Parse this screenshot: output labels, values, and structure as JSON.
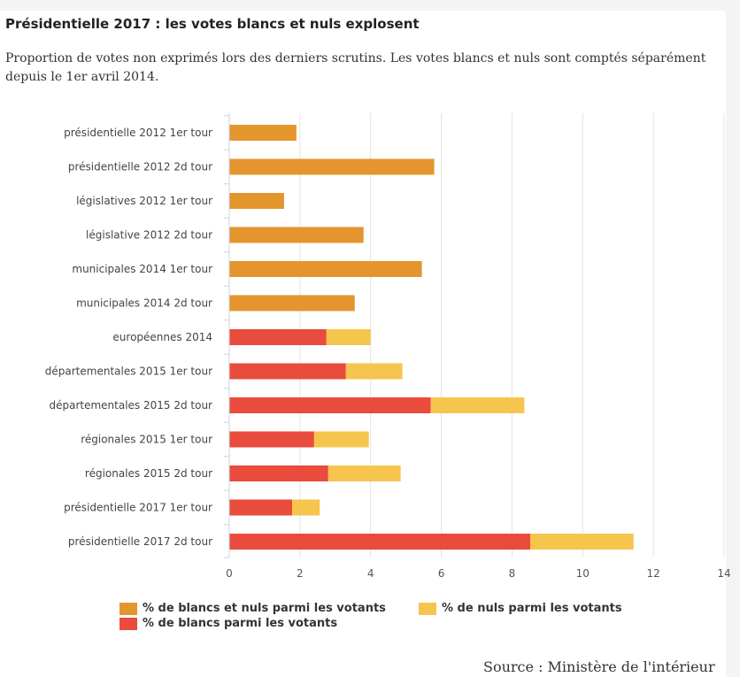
{
  "header": {
    "title": "Présidentielle 2017 : les votes blancs et nuls explosent",
    "subtitle": "Proportion de votes non exprimés lors des derniers scrutins. Les votes blancs et nuls sont comptés séparément depuis le 1er avril 2014."
  },
  "footer": {
    "source": "Source : Ministère de l'intérieur"
  },
  "chart_data": {
    "type": "bar",
    "orientation": "horizontal",
    "stacked": true,
    "title": "Présidentielle 2017 : les votes blancs et nuls explosent",
    "subtitle": "Proportion de votes non exprimés lors des derniers scrutins. Les votes blancs et nuls sont comptés séparément depuis le 1er avril 2014.",
    "categories": [
      "présidentielle 2012 1er tour",
      "présidentielle 2012 2d tour",
      "législatives 2012 1er tour",
      "législative 2012 2d tour",
      "municipales 2014 1er tour",
      "municipales 2014 2d tour",
      "européennes 2014",
      "départementales 2015 1er tour",
      "départementales 2015 2d tour",
      "régionales 2015 1er tour",
      "régionales 2015 2d tour",
      "présidentielle 2017 1er tour",
      "présidentielle 2017 2d tour"
    ],
    "series": [
      {
        "name": "% de blancs et nuls parmi les votants",
        "color": "#e5952e",
        "values": [
          1.9,
          5.8,
          1.55,
          3.8,
          5.45,
          3.55,
          0,
          0,
          0,
          0,
          0,
          0,
          0
        ]
      },
      {
        "name": "% de blancs parmi les votants",
        "color": "#e94b3c",
        "values": [
          0,
          0,
          0,
          0,
          0,
          0,
          2.75,
          3.3,
          5.7,
          2.4,
          2.8,
          1.78,
          8.52
        ]
      },
      {
        "name": "% de nuls parmi les votants",
        "color": "#f6c54e",
        "values": [
          0,
          0,
          0,
          0,
          0,
          0,
          1.25,
          1.6,
          2.65,
          1.55,
          2.05,
          0.78,
          2.92
        ]
      }
    ],
    "xlim": [
      0,
      14
    ],
    "xticks": [
      0,
      2,
      4,
      6,
      8,
      10,
      12,
      14
    ],
    "grid": true,
    "legend_placement": "bottom",
    "source": "Source : Ministère de l'intérieur"
  }
}
